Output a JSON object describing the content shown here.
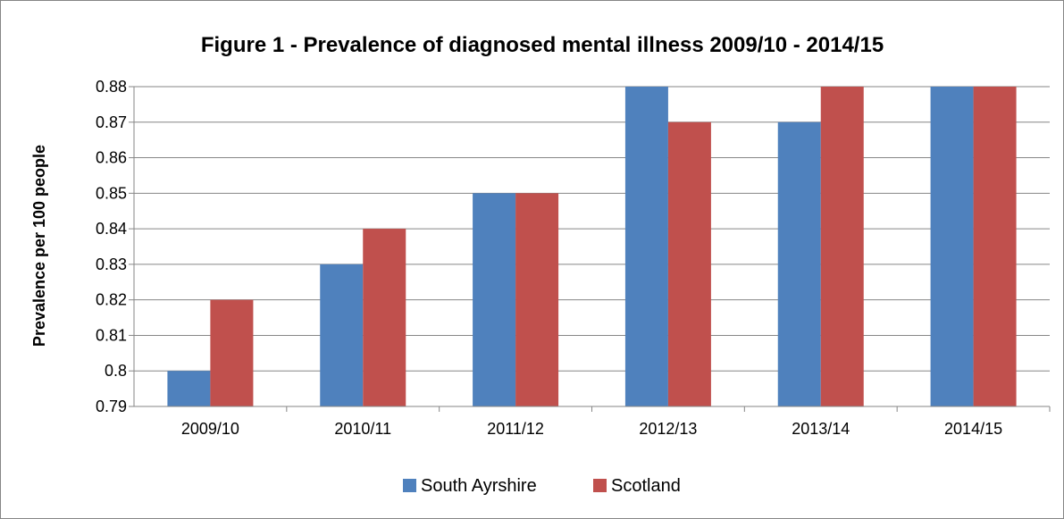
{
  "chart_data": {
    "type": "bar",
    "title": "Figure 1 - Prevalence of diagnosed mental illness 2009/10 - 2014/15",
    "xlabel": "",
    "ylabel": "Prevalence per 100 people",
    "categories": [
      "2009/10",
      "2010/11",
      "2011/12",
      "2012/13",
      "2013/14",
      "2014/15"
    ],
    "series": [
      {
        "name": "South Ayrshire",
        "color": "#4F81BD",
        "values": [
          0.8,
          0.83,
          0.85,
          0.88,
          0.87,
          0.88
        ]
      },
      {
        "name": "Scotland",
        "color": "#C0504D",
        "values": [
          0.82,
          0.84,
          0.85,
          0.87,
          0.88,
          0.88
        ]
      }
    ],
    "ylim": [
      0.79,
      0.88
    ],
    "yticks": [
      "0.79",
      "0.8",
      "0.81",
      "0.82",
      "0.83",
      "0.84",
      "0.85",
      "0.86",
      "0.87",
      "0.88"
    ],
    "grid": true,
    "legend": "bottom"
  }
}
